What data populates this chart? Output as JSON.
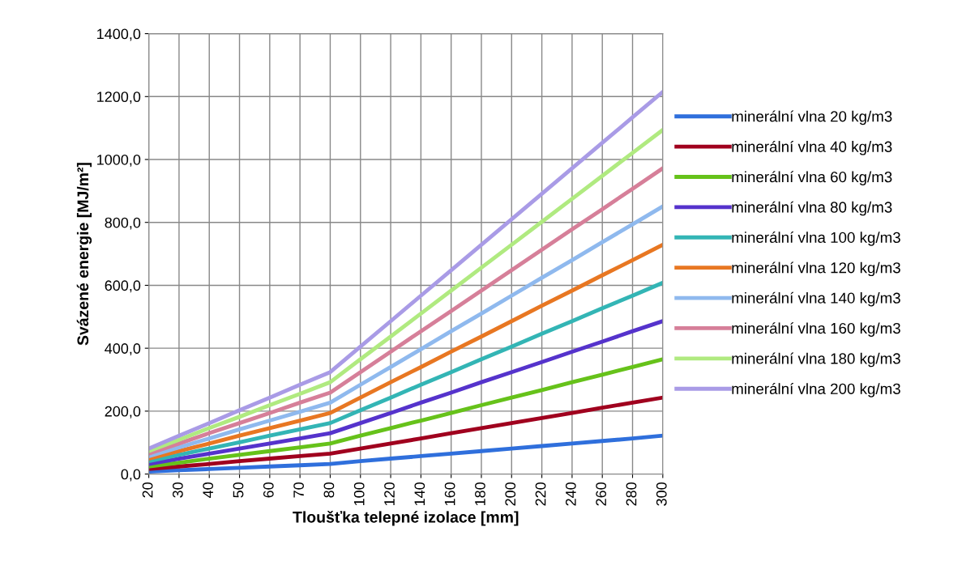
{
  "chart_data": {
    "type": "line",
    "xlabel": "Tloušťka telepné izolace [mm]",
    "ylabel": "Svázené energie [MJ/m²]",
    "categories": [
      "20",
      "30",
      "40",
      "50",
      "60",
      "70",
      "80",
      "100",
      "120",
      "140",
      "160",
      "180",
      "200",
      "220",
      "240",
      "260",
      "280",
      "300"
    ],
    "ylim": [
      0,
      1400
    ],
    "yticks": [
      {
        "value": 0,
        "label": "0,0"
      },
      {
        "value": 200,
        "label": "200,0"
      },
      {
        "value": 400,
        "label": "400,0"
      },
      {
        "value": 600,
        "label": "600,0"
      },
      {
        "value": 800,
        "label": "800,0"
      },
      {
        "value": 1000,
        "label": "1000,0"
      },
      {
        "value": 1200,
        "label": "1200,0"
      },
      {
        "value": 1400,
        "label": "1400,0"
      }
    ],
    "grid": true,
    "legend": "right",
    "marker": "none",
    "line_style": "solid",
    "series": [
      {
        "name": "minerální vlna 20 kg/m3",
        "color": "#2f6fdc",
        "values": [
          8,
          12,
          16,
          20,
          24,
          28,
          32,
          41,
          49,
          57,
          65,
          73,
          81,
          89,
          97,
          105,
          113,
          122
        ]
      },
      {
        "name": "minerální vlna 40 kg/m3",
        "color": "#a0001e",
        "values": [
          16,
          24,
          32,
          41,
          49,
          57,
          65,
          81,
          97,
          113,
          130,
          146,
          162,
          178,
          194,
          211,
          227,
          243
        ]
      },
      {
        "name": "minerální vlna 60 kg/m3",
        "color": "#66c21a",
        "values": [
          24,
          36,
          49,
          61,
          73,
          85,
          97,
          122,
          146,
          170,
          194,
          219,
          243,
          267,
          292,
          316,
          340,
          365
        ]
      },
      {
        "name": "minerální vlna 80 kg/m3",
        "color": "#5533cc",
        "values": [
          32,
          49,
          65,
          81,
          97,
          113,
          130,
          162,
          194,
          227,
          259,
          292,
          324,
          356,
          389,
          421,
          454,
          486
        ]
      },
      {
        "name": "minerální vlna 100 kg/m3",
        "color": "#33b5b5",
        "values": [
          41,
          61,
          81,
          101,
          122,
          142,
          162,
          203,
          243,
          284,
          324,
          365,
          405,
          446,
          486,
          527,
          567,
          608
        ]
      },
      {
        "name": "minerální vlna 120 kg/m3",
        "color": "#e87722",
        "values": [
          49,
          73,
          97,
          122,
          146,
          170,
          194,
          243,
          292,
          340,
          389,
          437,
          486,
          535,
          583,
          632,
          680,
          729
        ]
      },
      {
        "name": "minerální vlna 140 kg/m3",
        "color": "#8fb9ee",
        "values": [
          57,
          85,
          113,
          142,
          170,
          198,
          227,
          284,
          340,
          397,
          454,
          510,
          567,
          624,
          680,
          737,
          794,
          851
        ]
      },
      {
        "name": "minerální vlna 160 kg/m3",
        "color": "#d67f99",
        "values": [
          65,
          97,
          130,
          162,
          194,
          227,
          259,
          324,
          389,
          454,
          518,
          583,
          648,
          713,
          778,
          842,
          907,
          972
        ]
      },
      {
        "name": "minerální vlna 180 kg/m3",
        "color": "#b0ea80",
        "values": [
          73,
          109,
          146,
          182,
          219,
          255,
          292,
          365,
          437,
          510,
          583,
          656,
          729,
          802,
          875,
          948,
          1021,
          1094
        ]
      },
      {
        "name": "minerální vlna 200 kg/m3",
        "color": "#a99be6",
        "values": [
          81,
          122,
          162,
          203,
          243,
          284,
          324,
          405,
          486,
          567,
          648,
          729,
          810,
          891,
          972,
          1053,
          1134,
          1215
        ]
      }
    ]
  }
}
